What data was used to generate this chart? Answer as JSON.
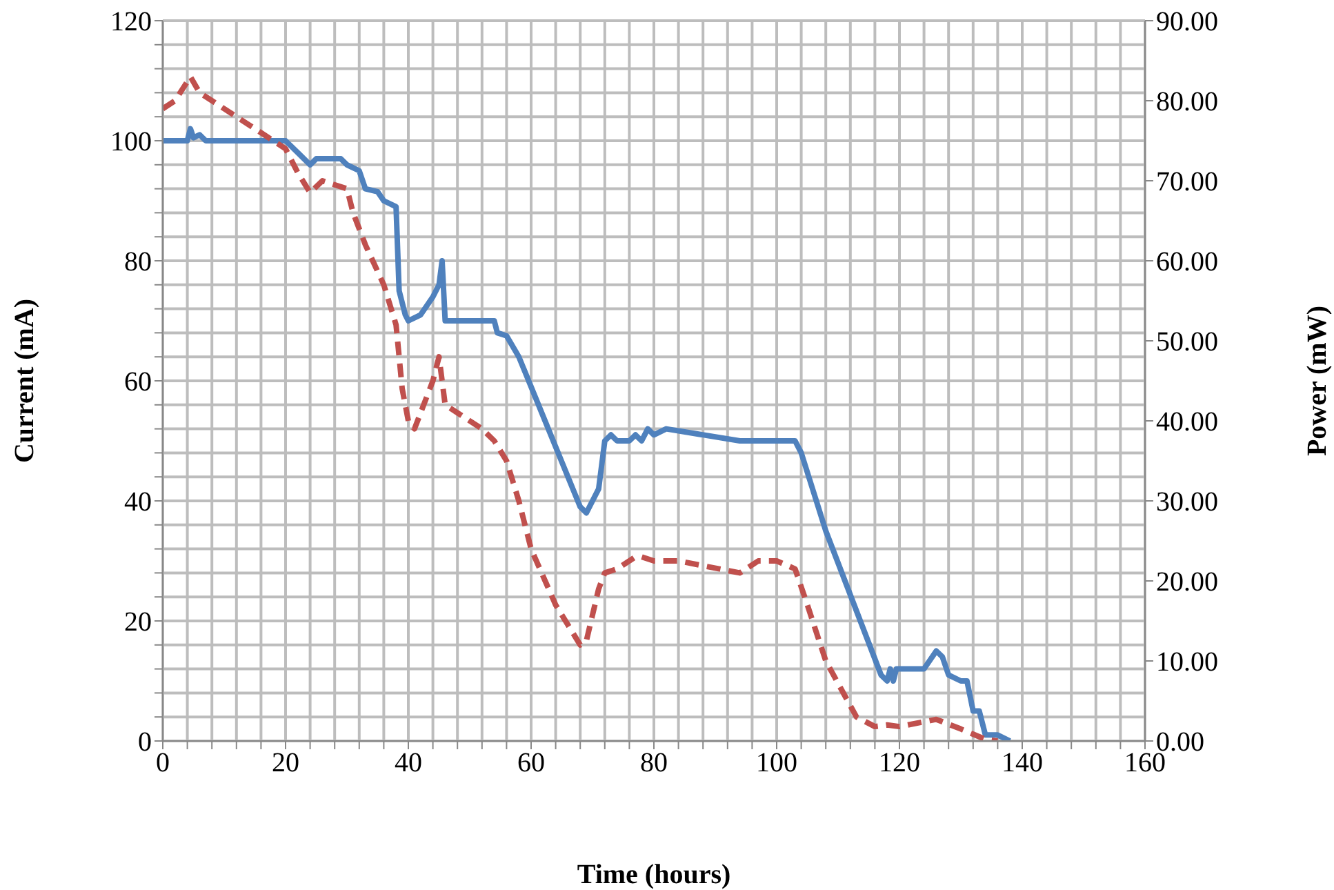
{
  "chart_data": {
    "type": "line",
    "xlabel": "Time (hours)",
    "ylabel": "Current (mA)",
    "y2label": "Power (mW)",
    "xlim": [
      0,
      160
    ],
    "xticks": [
      0,
      {
        "value": 4,
        "label": null
      },
      {
        "value": 8,
        "label": null
      },
      {
        "value": 12,
        "label": null
      },
      {
        "value": 16,
        "label": null
      },
      20,
      {
        "value": 24,
        "label": null
      },
      {
        "value": 28,
        "label": null
      },
      {
        "value": 32,
        "label": null
      },
      {
        "value": 36,
        "label": null
      },
      40,
      {
        "value": 44,
        "label": null
      },
      {
        "value": 48,
        "label": null
      },
      {
        "value": 52,
        "label": null
      },
      {
        "value": 56,
        "label": null
      },
      60,
      {
        "value": 64,
        "label": null
      },
      {
        "value": 68,
        "label": null
      },
      {
        "value": 72,
        "label": null
      },
      {
        "value": 76,
        "label": null
      },
      80,
      {
        "value": 84,
        "label": null
      },
      {
        "value": 88,
        "label": null
      },
      {
        "value": 92,
        "label": null
      },
      {
        "value": 96,
        "label": null
      },
      100,
      {
        "value": 104,
        "label": null
      },
      {
        "value": 108,
        "label": null
      },
      {
        "value": 112,
        "label": null
      },
      {
        "value": 116,
        "label": null
      },
      120,
      {
        "value": 124,
        "label": null
      },
      {
        "value": 128,
        "label": null
      },
      {
        "value": 132,
        "label": null
      },
      {
        "value": 136,
        "label": null
      },
      140,
      {
        "value": 144,
        "label": null
      },
      {
        "value": 148,
        "label": null
      },
      {
        "value": 152,
        "label": null
      },
      {
        "value": 156,
        "label": null
      },
      160
    ],
    "ylim": [
      0,
      120
    ],
    "yticks": [
      0,
      {
        "value": 4,
        "label": null
      },
      {
        "value": 8,
        "label": null
      },
      {
        "value": 12,
        "label": null
      },
      {
        "value": 16,
        "label": null
      },
      20,
      {
        "value": 24,
        "label": null
      },
      {
        "value": 28,
        "label": null
      },
      {
        "value": 32,
        "label": null
      },
      {
        "value": 36,
        "label": null
      },
      40,
      {
        "value": 44,
        "label": null
      },
      {
        "value": 48,
        "label": null
      },
      {
        "value": 52,
        "label": null
      },
      {
        "value": 56,
        "label": null
      },
      60,
      {
        "value": 64,
        "label": null
      },
      {
        "value": 68,
        "label": null
      },
      {
        "value": 72,
        "label": null
      },
      {
        "value": 76,
        "label": null
      },
      80,
      {
        "value": 84,
        "label": null
      },
      {
        "value": 88,
        "label": null
      },
      {
        "value": 92,
        "label": null
      },
      {
        "value": 96,
        "label": null
      },
      100,
      {
        "value": 104,
        "label": null
      },
      {
        "value": 108,
        "label": null
      },
      {
        "value": 112,
        "label": null
      },
      {
        "value": 116,
        "label": null
      },
      120
    ],
    "y2lim": [
      0,
      90
    ],
    "y2ticks": [
      {
        "value": 0,
        "label": "0.00"
      },
      {
        "value": 10,
        "label": "10.00"
      },
      {
        "value": 20,
        "label": "20.00"
      },
      {
        "value": 30,
        "label": "30.00"
      },
      {
        "value": 40,
        "label": "40.00"
      },
      {
        "value": 50,
        "label": "50.00"
      },
      {
        "value": 60,
        "label": "60.00"
      },
      {
        "value": 70,
        "label": "70.00"
      },
      {
        "value": 80,
        "label": "80.00"
      },
      {
        "value": 90,
        "label": "90.00"
      }
    ],
    "grid": true,
    "series": [
      {
        "color": "#4f81bd",
        "line_style": "solid",
        "x": [
          0,
          4,
          4.5,
          5,
          6,
          7,
          20,
          22,
          24,
          25,
          29,
          30,
          32,
          33,
          35,
          36,
          38,
          38.5,
          39.5,
          40,
          42,
          44,
          45,
          45.5,
          46,
          54,
          54.5,
          56,
          58,
          68,
          69,
          70,
          71,
          72,
          73,
          74,
          76,
          77,
          78,
          79,
          80,
          82,
          94,
          103,
          104,
          108,
          117,
          118,
          118.5,
          119,
          119.5,
          124,
          126,
          127,
          128,
          130,
          131,
          132,
          133,
          134,
          136,
          138
        ],
        "values": [
          100,
          100,
          102,
          100.5,
          101,
          100,
          100,
          98,
          96,
          97,
          97,
          96,
          95,
          92,
          91.5,
          90,
          89,
          75,
          71,
          70,
          71,
          74,
          76,
          80,
          70,
          70,
          68,
          67.5,
          64,
          39,
          38,
          40,
          42,
          50,
          51,
          50,
          50,
          51,
          50,
          52,
          51,
          52,
          50,
          50,
          48,
          35,
          11,
          10,
          12,
          10,
          12,
          12,
          15,
          14,
          11,
          10,
          10,
          5,
          5,
          1,
          1,
          0
        ]
      },
      {
        "color": "#c0504d",
        "line_style": "dashed",
        "axis": "y2",
        "x": [
          0,
          2,
          4.5,
          6,
          7,
          20,
          22,
          24,
          26,
          30,
          31,
          33,
          36,
          38,
          39,
          40,
          41,
          44,
          45,
          46,
          48,
          52,
          54,
          56,
          58,
          60,
          64,
          68,
          69,
          71,
          72,
          74,
          77,
          78,
          80,
          84,
          94,
          97,
          100,
          103,
          105,
          108,
          113,
          116,
          118,
          120,
          126,
          130,
          134,
          136
        ],
        "values": [
          79,
          80,
          83,
          81,
          80.5,
          74,
          71,
          68.5,
          70,
          69,
          66,
          62,
          57,
          52,
          44,
          40,
          39,
          45,
          48,
          42,
          41,
          39,
          37.5,
          35,
          30,
          24,
          17,
          12,
          12.5,
          19,
          21,
          21.5,
          23,
          23,
          22.5,
          22.5,
          21,
          22.5,
          22.5,
          21.5,
          17,
          10,
          3,
          1.8,
          2,
          1.8,
          2.7,
          1.5,
          0.2,
          0
        ]
      }
    ]
  }
}
